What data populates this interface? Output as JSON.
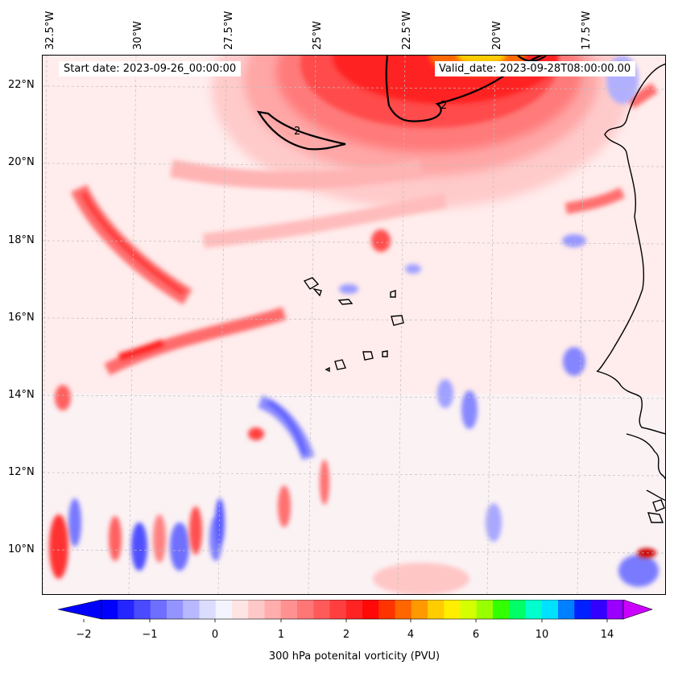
{
  "map": {
    "start_date": "Start date: 2023-09-26_00:00:00",
    "valid_date": "Valid_date: 2023-09-28T08:00:00.00",
    "lon_labels": [
      "32.5°W",
      "30°W",
      "27.5°W",
      "25°W",
      "22.5°W",
      "20°W",
      "17.5°W"
    ],
    "lat_labels": [
      "22°N",
      "20°N",
      "18°N",
      "16°N",
      "14°N",
      "12°N",
      "10°N"
    ],
    "contour_label": "2"
  },
  "colorbar": {
    "title": "300 hPa potenital vorticity (PVU)",
    "tick_labels": [
      "−2",
      "−1",
      "0",
      "1",
      "2",
      "4",
      "6",
      "10",
      "14"
    ],
    "colors": [
      "#0000ff",
      "#2525ff",
      "#4a4aff",
      "#6f6fff",
      "#9494ff",
      "#b8b8ff",
      "#dcdcff",
      "#f4f4ff",
      "#ffe4e4",
      "#ffc8c8",
      "#ffadad",
      "#ff9191",
      "#ff7676",
      "#ff5a5a",
      "#ff3f3f",
      "#ff2323",
      "#ff0808",
      "#ff3300",
      "#ff6600",
      "#ff9900",
      "#ffcc00",
      "#ffee00",
      "#d4ff00",
      "#99ff00",
      "#33ff00",
      "#00ff66",
      "#00ffcc",
      "#00e0ff",
      "#0080ff",
      "#0020ff",
      "#3300ff",
      "#9900ff"
    ],
    "under_color": "#0000ff",
    "over_color": "#cc00ff"
  }
}
